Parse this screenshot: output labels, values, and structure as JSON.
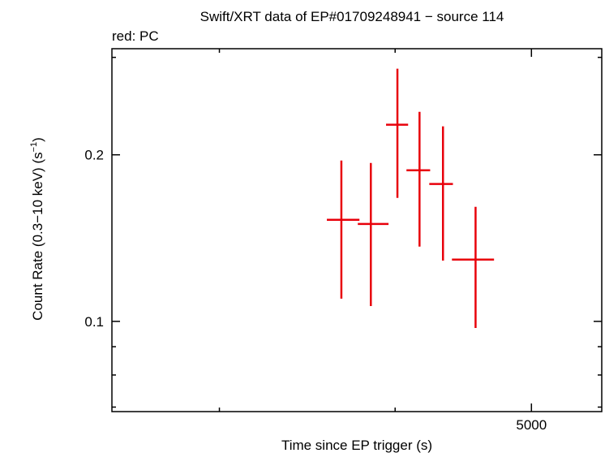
{
  "chart_data": {
    "type": "errorbar",
    "title": "Swift/XRT data of EP#01709248941 − source 114",
    "subtitle": "red: PC",
    "x_label": "Time since EP trigger (s)",
    "y_label": "Count Rate (0.3−10 keV) (s",
    "y_label_sup": "−1",
    "y_label_end": ")",
    "log_x": true,
    "log_y": true,
    "xlim": [
      2516,
      5610
    ],
    "ylim": [
      0.0687,
      0.311
    ],
    "xticks": [
      5000
    ],
    "x_minor_ticks": [
      3000,
      4000
    ],
    "yticks": [
      0.1,
      0.2
    ],
    "y_minor_ticks": [
      0.07,
      0.08,
      0.09,
      0.3
    ],
    "series": [
      {
        "name": "PC",
        "color": "#e8000b",
        "x": [
          3663,
          3844,
          4015,
          4163,
          4326,
          4563
        ],
        "x_low": [
          3577,
          3763,
          3941,
          4075,
          4230,
          4390
        ],
        "x_high": [
          3773,
          3957,
          4086,
          4236,
          4397,
          4703
        ],
        "values": [
          0.1526,
          0.15,
          0.2267,
          0.1875,
          0.1771,
          0.1293
        ],
        "y_low": [
          0.1099,
          0.1066,
          0.1672,
          0.1365,
          0.1288,
          0.0973
        ],
        "y_high": [
          0.1953,
          0.1933,
          0.2862,
          0.2392,
          0.2251,
          0.1611
        ]
      }
    ]
  }
}
